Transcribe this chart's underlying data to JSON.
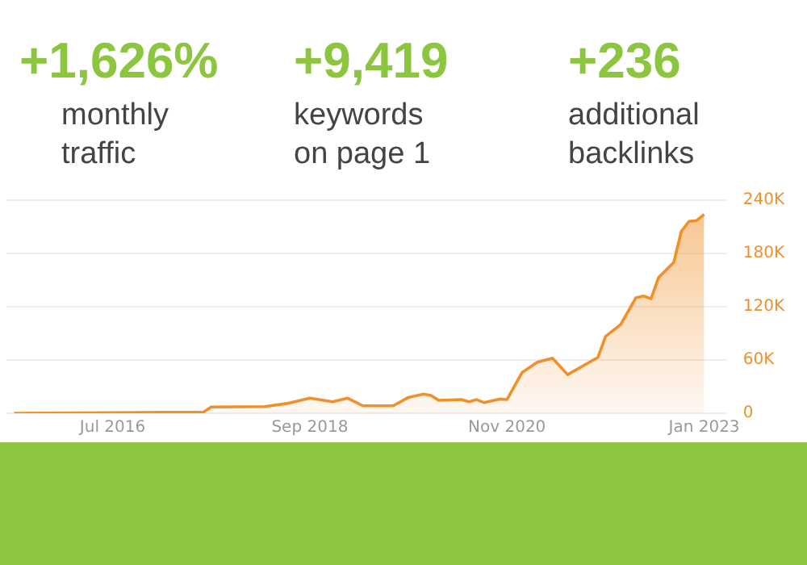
{
  "chart_data": {
    "type": "area",
    "annotations": [
      "+1,626%",
      "monthly traffic",
      "+9,419",
      "keywords on page 1",
      "+236",
      "additional backlinks"
    ],
    "x": [
      "2015-06",
      "2017-07",
      "2017-08",
      "2018-03",
      "2018-06",
      "2018-09",
      "2018-12",
      "2019-02",
      "2019-04",
      "2019-08",
      "2019-10",
      "2019-12",
      "2020-01",
      "2020-02",
      "2020-05",
      "2020-06",
      "2020-07",
      "2020-08",
      "2020-10",
      "2020-11",
      "2021-01",
      "2021-03",
      "2021-05",
      "2021-07",
      "2021-11",
      "2021-12",
      "2022-02",
      "2022-04",
      "2022-05",
      "2022-06",
      "2022-07",
      "2022-09",
      "2022-10",
      "2022-11",
      "2022-12",
      "2023-01"
    ],
    "series": [
      {
        "color": "#f0902a",
        "values": [
          0,
          1400,
          7000,
          7500,
          11000,
          17000,
          13000,
          17000,
          8400,
          8400,
          17800,
          21500,
          20000,
          14500,
          15400,
          13000,
          15400,
          12000,
          16000,
          15400,
          46000,
          57500,
          62000,
          43500,
          63000,
          86500,
          100000,
          130000,
          132000,
          129000,
          153000,
          170000,
          205000,
          216000,
          217000,
          224000
        ]
      }
    ],
    "xlim": [
      "2015-05",
      "2023-04"
    ],
    "xticks": [
      {
        "value": "2016-07",
        "label": "Jul 2016"
      },
      {
        "value": "2018-09",
        "label": "Sep 2018"
      },
      {
        "value": "2020-11",
        "label": "Nov 2020"
      },
      {
        "value": "2023-01",
        "label": "Jan 2023"
      }
    ],
    "ylim": [
      0,
      240000
    ],
    "yticks": [
      0,
      {
        "value": 60000,
        "label": "60K"
      },
      {
        "value": 120000,
        "label": "120K"
      },
      {
        "value": 180000,
        "label": "180K"
      },
      {
        "value": 240000,
        "label": "240K"
      }
    ],
    "grid": "y"
  }
}
